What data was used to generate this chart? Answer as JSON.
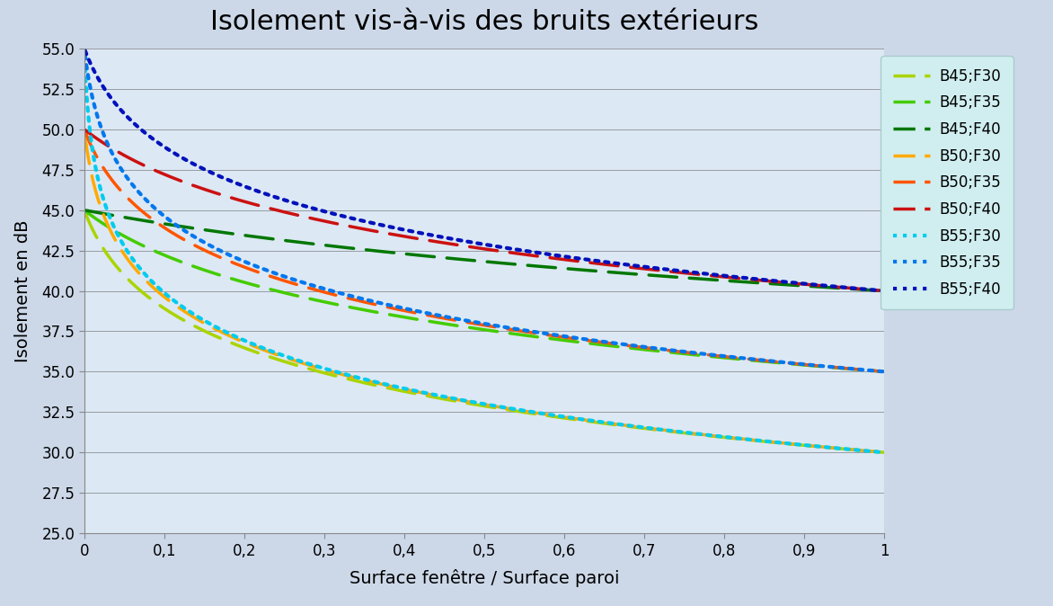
{
  "title": "Isolement vis-à-vis des bruits extérieurs",
  "xlabel": "Surface fenêtre / Surface paroi",
  "ylabel": "Isolement en dB",
  "ylim": [
    25.0,
    55.0
  ],
  "xlim": [
    0,
    1.0
  ],
  "yticks": [
    25.0,
    27.5,
    30.0,
    32.5,
    35.0,
    37.5,
    40.0,
    42.5,
    45.0,
    47.5,
    50.0,
    52.5,
    55.0
  ],
  "xticks": [
    0,
    0.1,
    0.2,
    0.3,
    0.4,
    0.5,
    0.6,
    0.7,
    0.8,
    0.9,
    1
  ],
  "xtick_labels": [
    "0",
    "0,1",
    "0,2",
    "0,3",
    "0,4",
    "0,5",
    "0,6",
    "0,7",
    "0,8",
    "0,9",
    "1"
  ],
  "series": [
    {
      "label": "B45;F30",
      "B": 45,
      "F": 30,
      "color": "#aad400",
      "linestyle": "dashed",
      "linewidth": 2.5
    },
    {
      "label": "B45;F35",
      "B": 45,
      "F": 35,
      "color": "#44cc00",
      "linestyle": "dashed",
      "linewidth": 2.5
    },
    {
      "label": "B45;F40",
      "B": 45,
      "F": 40,
      "color": "#007700",
      "linestyle": "dashed",
      "linewidth": 2.5
    },
    {
      "label": "B50;F30",
      "B": 50,
      "F": 30,
      "color": "#ffaa00",
      "linestyle": "dashed",
      "linewidth": 2.5
    },
    {
      "label": "B50;F35",
      "B": 50,
      "F": 35,
      "color": "#ff5500",
      "linestyle": "dashed",
      "linewidth": 2.5
    },
    {
      "label": "B50;F40",
      "B": 50,
      "F": 40,
      "color": "#cc1111",
      "linestyle": "dashed",
      "linewidth": 2.5
    },
    {
      "label": "B55;F30",
      "B": 55,
      "F": 30,
      "color": "#00ccee",
      "linestyle": "dotted",
      "linewidth": 3.0
    },
    {
      "label": "B55;F35",
      "B": 55,
      "F": 35,
      "color": "#0077ee",
      "linestyle": "dotted",
      "linewidth": 3.0
    },
    {
      "label": "B55;F40",
      "B": 55,
      "F": 40,
      "color": "#0011bb",
      "linestyle": "dotted",
      "linewidth": 3.0
    }
  ],
  "bg_left_color": "#c8d4e8",
  "bg_right_color": "#f0f4f8",
  "plot_bg_left": "#d8e4f0",
  "plot_bg_right": "#f2f6fa",
  "legend_bg_color": "#d0eef0",
  "title_fontsize": 22,
  "label_fontsize": 14,
  "tick_fontsize": 12,
  "legend_fontsize": 12
}
